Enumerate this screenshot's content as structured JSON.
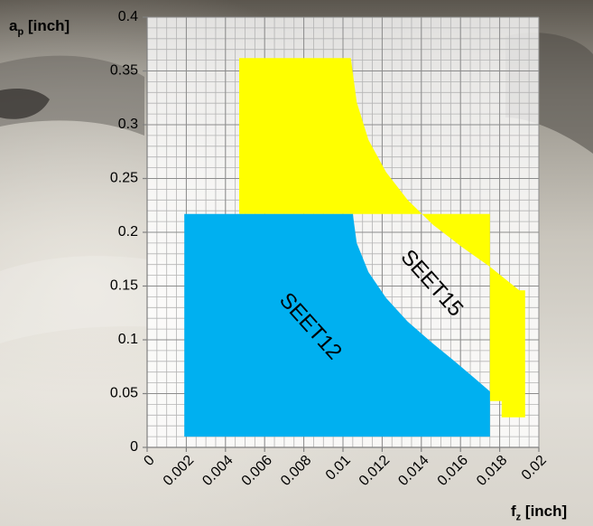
{
  "chart_data": {
    "type": "area",
    "xlabel": {
      "main": "f",
      "sub": "z",
      "unit": "[inch]"
    },
    "ylabel": {
      "main": "a",
      "sub": "p",
      "unit": "[inch]"
    },
    "xlim": [
      0,
      0.02
    ],
    "ylim": [
      0,
      0.4
    ],
    "x_ticks": [
      0,
      0.002,
      0.004,
      0.006,
      0.008,
      0.01,
      0.012,
      0.014,
      0.016,
      0.018,
      0.02
    ],
    "x_tick_labels": [
      "0",
      "0.002",
      "0.004",
      "0.006",
      "0.008",
      "0.01",
      "0.012",
      "0.014",
      "0.016",
      "0.018",
      "0.02"
    ],
    "y_ticks": [
      0,
      0.05,
      0.1,
      0.15,
      0.2,
      0.25,
      0.3,
      0.35,
      0.4
    ],
    "y_tick_labels": [
      "0",
      "0.05",
      "0.1",
      "0.15",
      "0.2",
      "0.25",
      "0.3",
      "0.35",
      "0.4"
    ],
    "grid": true,
    "regions": [
      {
        "name": "SEET15",
        "color": "#ffff00",
        "label": "SEET15",
        "label_position": [
          0.0145,
          0.152
        ],
        "label_rotation": 48,
        "polygon": [
          [
            0.0047,
            0.362
          ],
          [
            0.0104,
            0.362
          ],
          [
            0.0107,
            0.321
          ],
          [
            0.0113,
            0.286
          ],
          [
            0.0122,
            0.256
          ],
          [
            0.0133,
            0.23
          ],
          [
            0.0146,
            0.207
          ],
          [
            0.0161,
            0.186
          ],
          [
            0.0175,
            0.168
          ],
          [
            0.019,
            0.146
          ],
          [
            0.0193,
            0.146
          ],
          [
            0.0193,
            0.028
          ],
          [
            0.0181,
            0.028
          ],
          [
            0.0181,
            0.043
          ],
          [
            0.0175,
            0.043
          ],
          [
            0.0175,
            0.217
          ],
          [
            0.0047,
            0.217
          ]
        ]
      },
      {
        "name": "SEET12",
        "color": "#00b0f0",
        "label": "SEET12",
        "label_position": [
          0.0083,
          0.112
        ],
        "label_rotation": 48,
        "polygon": [
          [
            0.0019,
            0.217
          ],
          [
            0.0105,
            0.217
          ],
          [
            0.0107,
            0.19
          ],
          [
            0.0113,
            0.163
          ],
          [
            0.0122,
            0.139
          ],
          [
            0.0133,
            0.117
          ],
          [
            0.0145,
            0.098
          ],
          [
            0.0157,
            0.08
          ],
          [
            0.0168,
            0.063
          ],
          [
            0.0175,
            0.052
          ],
          [
            0.0175,
            0.01
          ],
          [
            0.0019,
            0.01
          ]
        ]
      }
    ]
  }
}
